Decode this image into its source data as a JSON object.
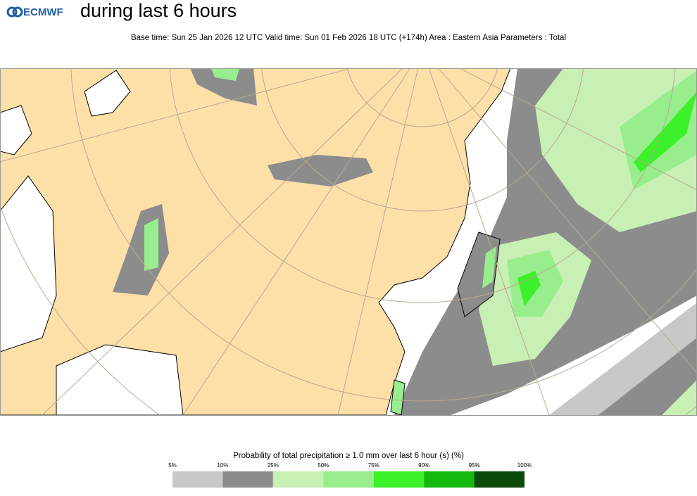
{
  "header": {
    "logo": "ECMWF",
    "title": "during last 6 hours",
    "subtitle": "Base time: Sun 25 Jan 2026 12 UTC Valid time: Sun 01 Feb 2026 18 UTC (+174h) Area : Eastern Asia Parameters : Total"
  },
  "legend": {
    "title": "Probability of total precipitation ≥ 1.0 mm over last 6 hour (s) (%)",
    "ticks": [
      "5%",
      "10%",
      "25%",
      "50%",
      "75%",
      "90%",
      "95%",
      "100%"
    ],
    "colors": [
      "#c8c8c8",
      "#8c8c8c",
      "#c8f0b4",
      "#98ee8c",
      "#3cf02a",
      "#14b90e",
      "#0b4a0b"
    ]
  }
}
